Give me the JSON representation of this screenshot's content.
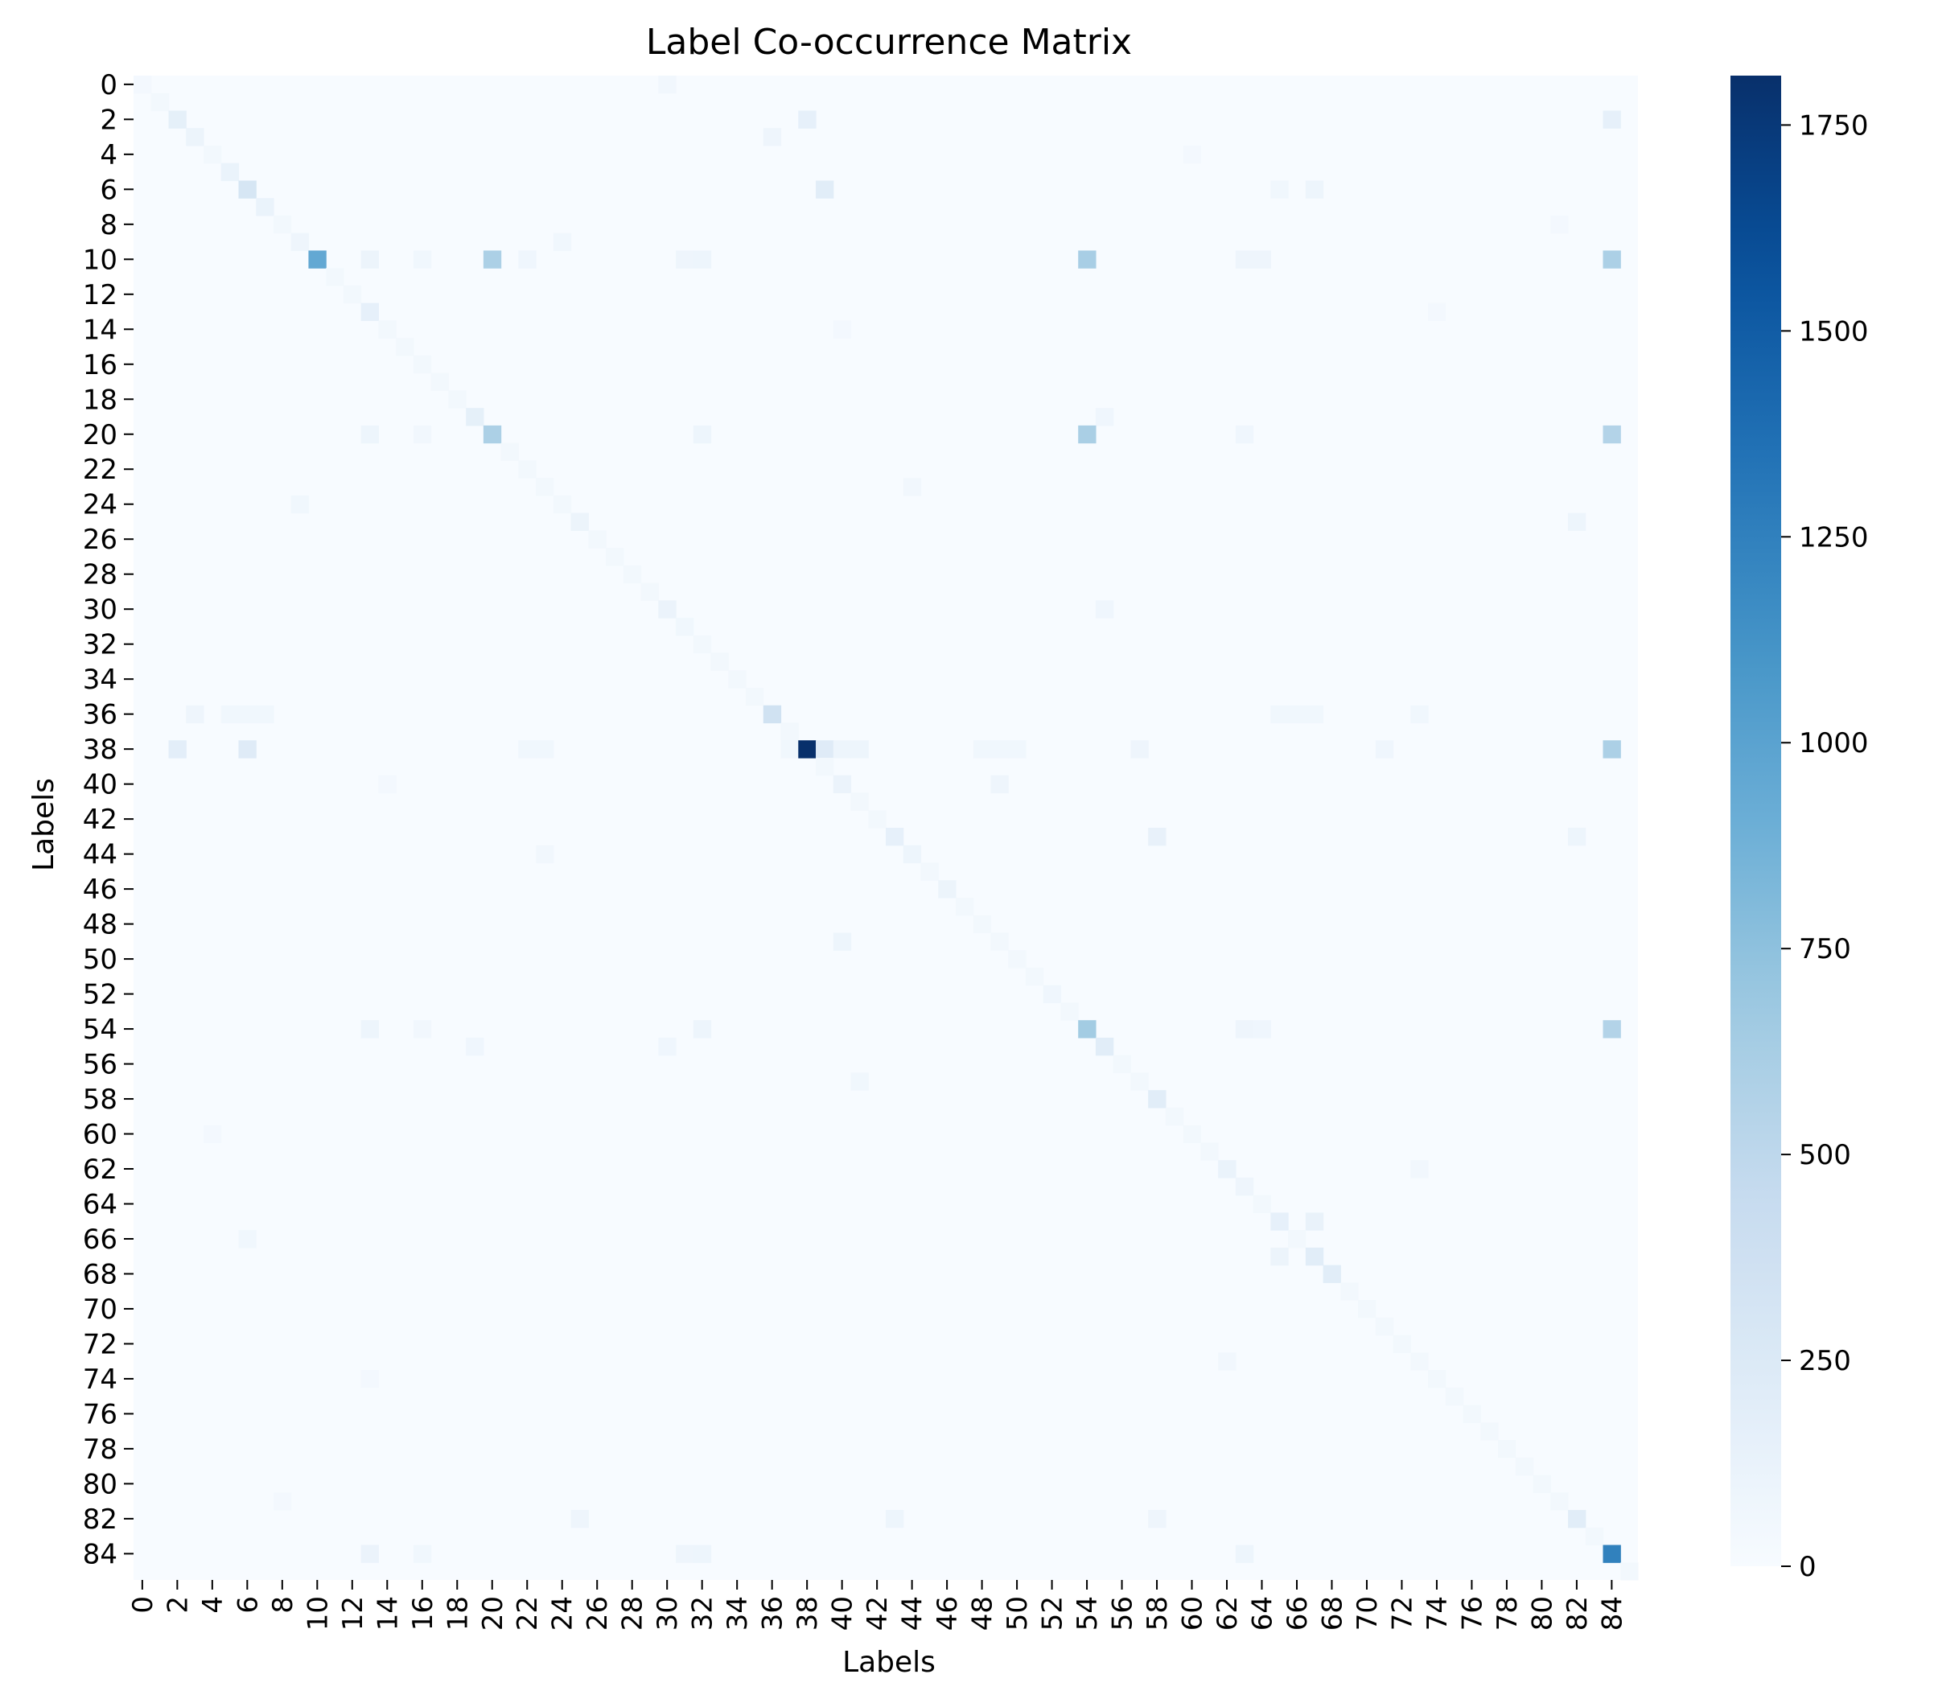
{
  "chart_data": {
    "type": "heatmap",
    "title": "Label Co-occurrence Matrix",
    "xlabel": "Labels",
    "ylabel": "Labels",
    "n": 86,
    "x_tick_labels": [
      "0",
      "2",
      "4",
      "6",
      "8",
      "10",
      "12",
      "14",
      "16",
      "18",
      "20",
      "22",
      "24",
      "26",
      "28",
      "30",
      "32",
      "34",
      "36",
      "38",
      "40",
      "42",
      "44",
      "46",
      "48",
      "50",
      "52",
      "54",
      "56",
      "58",
      "60",
      "62",
      "64",
      "66",
      "68",
      "70",
      "72",
      "74",
      "76",
      "78",
      "80",
      "82",
      "84"
    ],
    "y_tick_labels": [
      "0",
      "2",
      "4",
      "6",
      "8",
      "10",
      "12",
      "14",
      "16",
      "18",
      "20",
      "22",
      "24",
      "26",
      "28",
      "30",
      "32",
      "34",
      "36",
      "38",
      "40",
      "42",
      "44",
      "46",
      "48",
      "50",
      "52",
      "54",
      "56",
      "58",
      "60",
      "62",
      "64",
      "66",
      "68",
      "70",
      "72",
      "74",
      "76",
      "78",
      "80",
      "82",
      "84"
    ],
    "colormap": "Blues",
    "color_range": [
      0,
      1810
    ],
    "colorbar_ticks": [
      "0",
      "250",
      "500",
      "750",
      "1000",
      "1250",
      "1500",
      "1750"
    ],
    "colorbar_tick_values": [
      0,
      250,
      500,
      750,
      1000,
      1250,
      1500,
      1750
    ],
    "diagonal_default": 45,
    "diagonal": {
      "0": 40,
      "2": 160,
      "3": 100,
      "5": 120,
      "6": 300,
      "7": 120,
      "9": 80,
      "10": 950,
      "13": 150,
      "19": 160,
      "20": 600,
      "25": 100,
      "30": 110,
      "31": 60,
      "36": 360,
      "38": 1810,
      "40": 110,
      "43": 150,
      "44": 90,
      "46": 100,
      "52": 70,
      "54": 650,
      "55": 200,
      "58": 200,
      "62": 120,
      "63": 80,
      "65": 150,
      "67": 200,
      "68": 200,
      "82": 200,
      "84": 1250
    },
    "off_diagonal": [
      [
        10,
        20,
        600
      ],
      [
        10,
        54,
        620
      ],
      [
        10,
        84,
        600
      ],
      [
        20,
        54,
        610
      ],
      [
        20,
        84,
        560
      ],
      [
        54,
        84,
        560
      ],
      [
        10,
        13,
        100
      ],
      [
        20,
        13,
        90
      ],
      [
        54,
        13,
        90
      ],
      [
        84,
        13,
        110
      ],
      [
        10,
        16,
        60
      ],
      [
        20,
        16,
        50
      ],
      [
        54,
        16,
        50
      ],
      [
        84,
        16,
        60
      ],
      [
        10,
        22,
        70
      ],
      [
        20,
        32,
        90
      ],
      [
        10,
        32,
        90
      ],
      [
        54,
        32,
        90
      ],
      [
        84,
        32,
        90
      ],
      [
        10,
        31,
        80
      ],
      [
        84,
        31,
        80
      ],
      [
        10,
        63,
        80
      ],
      [
        10,
        64,
        80
      ],
      [
        20,
        63,
        70
      ],
      [
        54,
        63,
        80
      ],
      [
        84,
        63,
        90
      ],
      [
        54,
        64,
        70
      ],
      [
        38,
        84,
        600
      ],
      [
        38,
        2,
        180
      ],
      [
        38,
        6,
        220
      ],
      [
        38,
        39,
        220
      ],
      [
        38,
        37,
        60
      ],
      [
        38,
        40,
        90
      ],
      [
        38,
        41,
        90
      ],
      [
        38,
        48,
        60
      ],
      [
        38,
        49,
        60
      ],
      [
        38,
        50,
        60
      ],
      [
        38,
        57,
        80
      ],
      [
        38,
        23,
        60
      ],
      [
        38,
        22,
        60
      ],
      [
        38,
        71,
        70
      ],
      [
        6,
        39,
        200
      ],
      [
        2,
        84,
        150
      ],
      [
        2,
        38,
        150
      ],
      [
        36,
        3,
        80
      ],
      [
        36,
        5,
        60
      ],
      [
        36,
        6,
        60
      ],
      [
        36,
        7,
        60
      ],
      [
        36,
        65,
        60
      ],
      [
        36,
        66,
        60
      ],
      [
        36,
        67,
        60
      ],
      [
        36,
        73,
        60
      ],
      [
        43,
        58,
        140
      ],
      [
        82,
        43,
        90
      ],
      [
        82,
        58,
        80
      ],
      [
        43,
        82,
        90
      ],
      [
        65,
        67,
        130
      ],
      [
        67,
        65,
        100
      ],
      [
        6,
        65,
        60
      ],
      [
        6,
        67,
        90
      ],
      [
        66,
        6,
        60
      ],
      [
        40,
        49,
        80
      ],
      [
        49,
        40,
        90
      ],
      [
        57,
        41,
        60
      ],
      [
        25,
        82,
        90
      ],
      [
        82,
        25,
        80
      ],
      [
        0,
        30,
        50
      ],
      [
        30,
        55,
        70
      ],
      [
        55,
        30,
        70
      ],
      [
        9,
        24,
        60
      ],
      [
        24,
        9,
        60
      ],
      [
        19,
        55,
        70
      ],
      [
        55,
        19,
        70
      ],
      [
        3,
        36,
        80
      ],
      [
        44,
        23,
        50
      ],
      [
        23,
        44,
        50
      ],
      [
        73,
        62,
        50
      ],
      [
        62,
        73,
        50
      ],
      [
        74,
        13,
        40
      ],
      [
        13,
        74,
        40
      ],
      [
        8,
        81,
        40
      ],
      [
        81,
        8,
        40
      ],
      [
        60,
        4,
        40
      ],
      [
        4,
        60,
        40
      ],
      [
        14,
        40,
        40
      ],
      [
        40,
        14,
        40
      ]
    ]
  }
}
